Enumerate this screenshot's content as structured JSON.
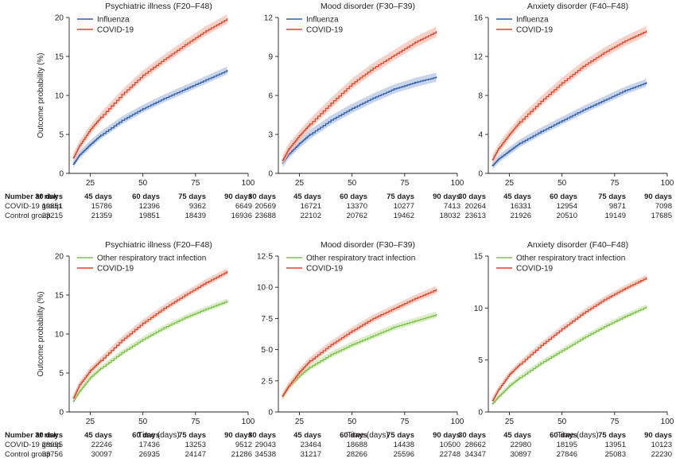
{
  "colors": {
    "influenza": "#2e5fa8",
    "influenza_band": "#b4c6e6",
    "covid": "#e0442b",
    "covid_band": "#f7c1b3",
    "other_rti": "#7cc24a",
    "other_rti_band": "#cfe8b4",
    "axis": "#231f20"
  },
  "risk_table": {
    "header": "Number at risk",
    "columns": [
      "30 days",
      "45 days",
      "60 days",
      "75 days",
      "90 days"
    ],
    "row_labels": [
      "COVID-19 group",
      "Control group"
    ]
  },
  "chart_data": [
    {
      "type": "line",
      "title": "Psychiatric illness (F20–F48)",
      "ylabel": "Outcome probability (%)",
      "xlabel": "",
      "xlim": [
        15,
        100
      ],
      "ylim": [
        0,
        20
      ],
      "xticks": [
        25,
        50,
        75,
        100
      ],
      "yticks": [
        0,
        5,
        10,
        15,
        20
      ],
      "ytick_labels": [
        "0",
        "5",
        "10",
        "15",
        "20"
      ],
      "x": [
        17,
        20,
        25,
        30,
        40,
        50,
        60,
        70,
        80,
        90
      ],
      "series": [
        {
          "name": "Influenza",
          "color_key": "influenza",
          "values": [
            1.2,
            2.4,
            3.7,
            4.9,
            6.8,
            8.3,
            9.6,
            10.8,
            12.0,
            13.2
          ],
          "ci": 0.5
        },
        {
          "name": "COVID-19",
          "color_key": "covid",
          "values": [
            2.0,
            3.6,
            5.6,
            7.2,
            10.1,
            12.6,
            14.6,
            16.5,
            18.3,
            19.8
          ],
          "ci": 0.6
        }
      ],
      "risk": {
        "covid": [
          "19851",
          "15786",
          "12396",
          "9362",
          "6649"
        ],
        "control": [
          "23215",
          "21359",
          "19851",
          "18439",
          "16936"
        ]
      }
    },
    {
      "type": "line",
      "title": "Mood disorder (F30–F39)",
      "ylabel": "",
      "xlabel": "",
      "xlim": [
        15,
        100
      ],
      "ylim": [
        0,
        12
      ],
      "xticks": [
        25,
        50,
        75,
        100
      ],
      "yticks": [
        0,
        3,
        6,
        9,
        12
      ],
      "ytick_labels": [
        "0",
        "3",
        "6",
        "9",
        "12"
      ],
      "x": [
        17,
        20,
        25,
        30,
        40,
        50,
        60,
        70,
        80,
        90
      ],
      "series": [
        {
          "name": "Influenza",
          "color_key": "influenza",
          "values": [
            0.8,
            1.5,
            2.3,
            3.0,
            4.1,
            5.0,
            5.8,
            6.5,
            7.0,
            7.4
          ],
          "ci": 0.35
        },
        {
          "name": "COVID-19",
          "color_key": "covid",
          "values": [
            1.0,
            1.9,
            2.9,
            3.8,
            5.4,
            6.9,
            8.1,
            9.1,
            10.1,
            10.9
          ],
          "ci": 0.4
        }
      ],
      "risk": {
        "covid": [
          "20569",
          "16721",
          "13370",
          "10277",
          "7413"
        ],
        "control": [
          "23688",
          "22102",
          "20762",
          "19462",
          "18032"
        ]
      }
    },
    {
      "type": "line",
      "title": "Anxiety disorder (F40–F48)",
      "ylabel": "",
      "xlabel": "",
      "xlim": [
        15,
        100
      ],
      "ylim": [
        0,
        16
      ],
      "xticks": [
        25,
        50,
        75,
        100
      ],
      "yticks": [
        0,
        4,
        8,
        12,
        16
      ],
      "ytick_labels": [
        "0",
        "4",
        "8",
        "12",
        "16"
      ],
      "x": [
        17,
        20,
        25,
        30,
        40,
        50,
        60,
        70,
        80,
        90
      ],
      "series": [
        {
          "name": "Influenza",
          "color_key": "influenza",
          "values": [
            0.8,
            1.5,
            2.3,
            3.1,
            4.3,
            5.4,
            6.5,
            7.5,
            8.5,
            9.3
          ],
          "ci": 0.4
        },
        {
          "name": "COVID-19",
          "color_key": "covid",
          "values": [
            1.4,
            2.6,
            4.0,
            5.3,
            7.4,
            9.3,
            11.0,
            12.4,
            13.6,
            14.6
          ],
          "ci": 0.5
        }
      ],
      "risk": {
        "covid": [
          "20264",
          "16331",
          "12954",
          "9871",
          "7098"
        ],
        "control": [
          "23613",
          "21926",
          "20510",
          "19149",
          "17685"
        ]
      }
    },
    {
      "type": "line",
      "title": "Psychiatric illness (F20–F48)",
      "ylabel": "Outcome probability (%)",
      "xlabel": "Time (days)",
      "xlim": [
        15,
        100
      ],
      "ylim": [
        0,
        20
      ],
      "xticks": [
        25,
        50,
        75,
        100
      ],
      "yticks": [
        0,
        5,
        10,
        15,
        20
      ],
      "ytick_labels": [
        "0",
        "5",
        "10",
        "15",
        "20"
      ],
      "x": [
        17,
        20,
        25,
        30,
        40,
        50,
        60,
        70,
        80,
        90
      ],
      "series": [
        {
          "name": "Other respiratory tract infection",
          "color_key": "other_rti",
          "values": [
            1.4,
            2.7,
            4.4,
            5.6,
            7.6,
            9.3,
            10.8,
            12.1,
            13.2,
            14.2
          ],
          "ci": 0.35
        },
        {
          "name": "COVID-19",
          "color_key": "covid",
          "values": [
            1.8,
            3.5,
            5.3,
            6.6,
            9.2,
            11.4,
            13.3,
            15.0,
            16.6,
            18.0
          ],
          "ci": 0.45
        }
      ],
      "risk": {
        "covid": [
          "28095",
          "22246",
          "17436",
          "13253",
          "9512"
        ],
        "control": [
          "33756",
          "30097",
          "26935",
          "24147",
          "21286"
        ]
      }
    },
    {
      "type": "line",
      "title": "Mood disorder (F30–F39)",
      "ylabel": "",
      "xlabel": "Time (days)",
      "xlim": [
        15,
        100
      ],
      "ylim": [
        0,
        12.5
      ],
      "xticks": [
        25,
        50,
        75,
        100
      ],
      "yticks": [
        0,
        2.5,
        5,
        7.5,
        10,
        12.5
      ],
      "ytick_labels": [
        "0",
        "2·5",
        "5·0",
        "7·5",
        "10·0",
        "12·5"
      ],
      "x": [
        17,
        20,
        25,
        30,
        40,
        50,
        60,
        70,
        80,
        90
      ],
      "series": [
        {
          "name": "Other respiratory tract infection",
          "color_key": "other_rti",
          "values": [
            1.2,
            2.0,
            2.9,
            3.6,
            4.6,
            5.4,
            6.1,
            6.8,
            7.3,
            7.8
          ],
          "ci": 0.25
        },
        {
          "name": "COVID-19",
          "color_key": "covid",
          "values": [
            1.3,
            2.1,
            3.2,
            4.1,
            5.4,
            6.5,
            7.5,
            8.3,
            9.1,
            9.8
          ],
          "ci": 0.3
        }
      ],
      "risk": {
        "covid": [
          "29043",
          "23464",
          "18688",
          "14438",
          "10500"
        ],
        "control": [
          "34538",
          "31217",
          "28266",
          "25596",
          "22748"
        ]
      }
    },
    {
      "type": "line",
      "title": "Anxiety disorder (F40–F48)",
      "ylabel": "",
      "xlabel": "Time (days)",
      "xlim": [
        15,
        100
      ],
      "ylim": [
        0,
        15
      ],
      "xticks": [
        25,
        50,
        75,
        100
      ],
      "yticks": [
        0,
        5,
        10,
        15
      ],
      "ytick_labels": [
        "0",
        "5",
        "10",
        "15"
      ],
      "x": [
        17,
        20,
        25,
        30,
        40,
        50,
        60,
        70,
        80,
        90
      ],
      "series": [
        {
          "name": "Other respiratory tract infection",
          "color_key": "other_rti",
          "values": [
            0.8,
            1.5,
            2.5,
            3.3,
            4.7,
            5.9,
            7.1,
            8.2,
            9.2,
            10.1
          ],
          "ci": 0.25
        },
        {
          "name": "COVID-19",
          "color_key": "covid",
          "values": [
            1.1,
            2.2,
            3.6,
            4.6,
            6.4,
            8.0,
            9.5,
            10.8,
            11.9,
            12.9
          ],
          "ci": 0.3
        }
      ],
      "risk": {
        "covid": [
          "28662",
          "22980",
          "18195",
          "13951",
          "10123"
        ],
        "control": [
          "34347",
          "30897",
          "27846",
          "25083",
          "22230"
        ]
      }
    }
  ]
}
